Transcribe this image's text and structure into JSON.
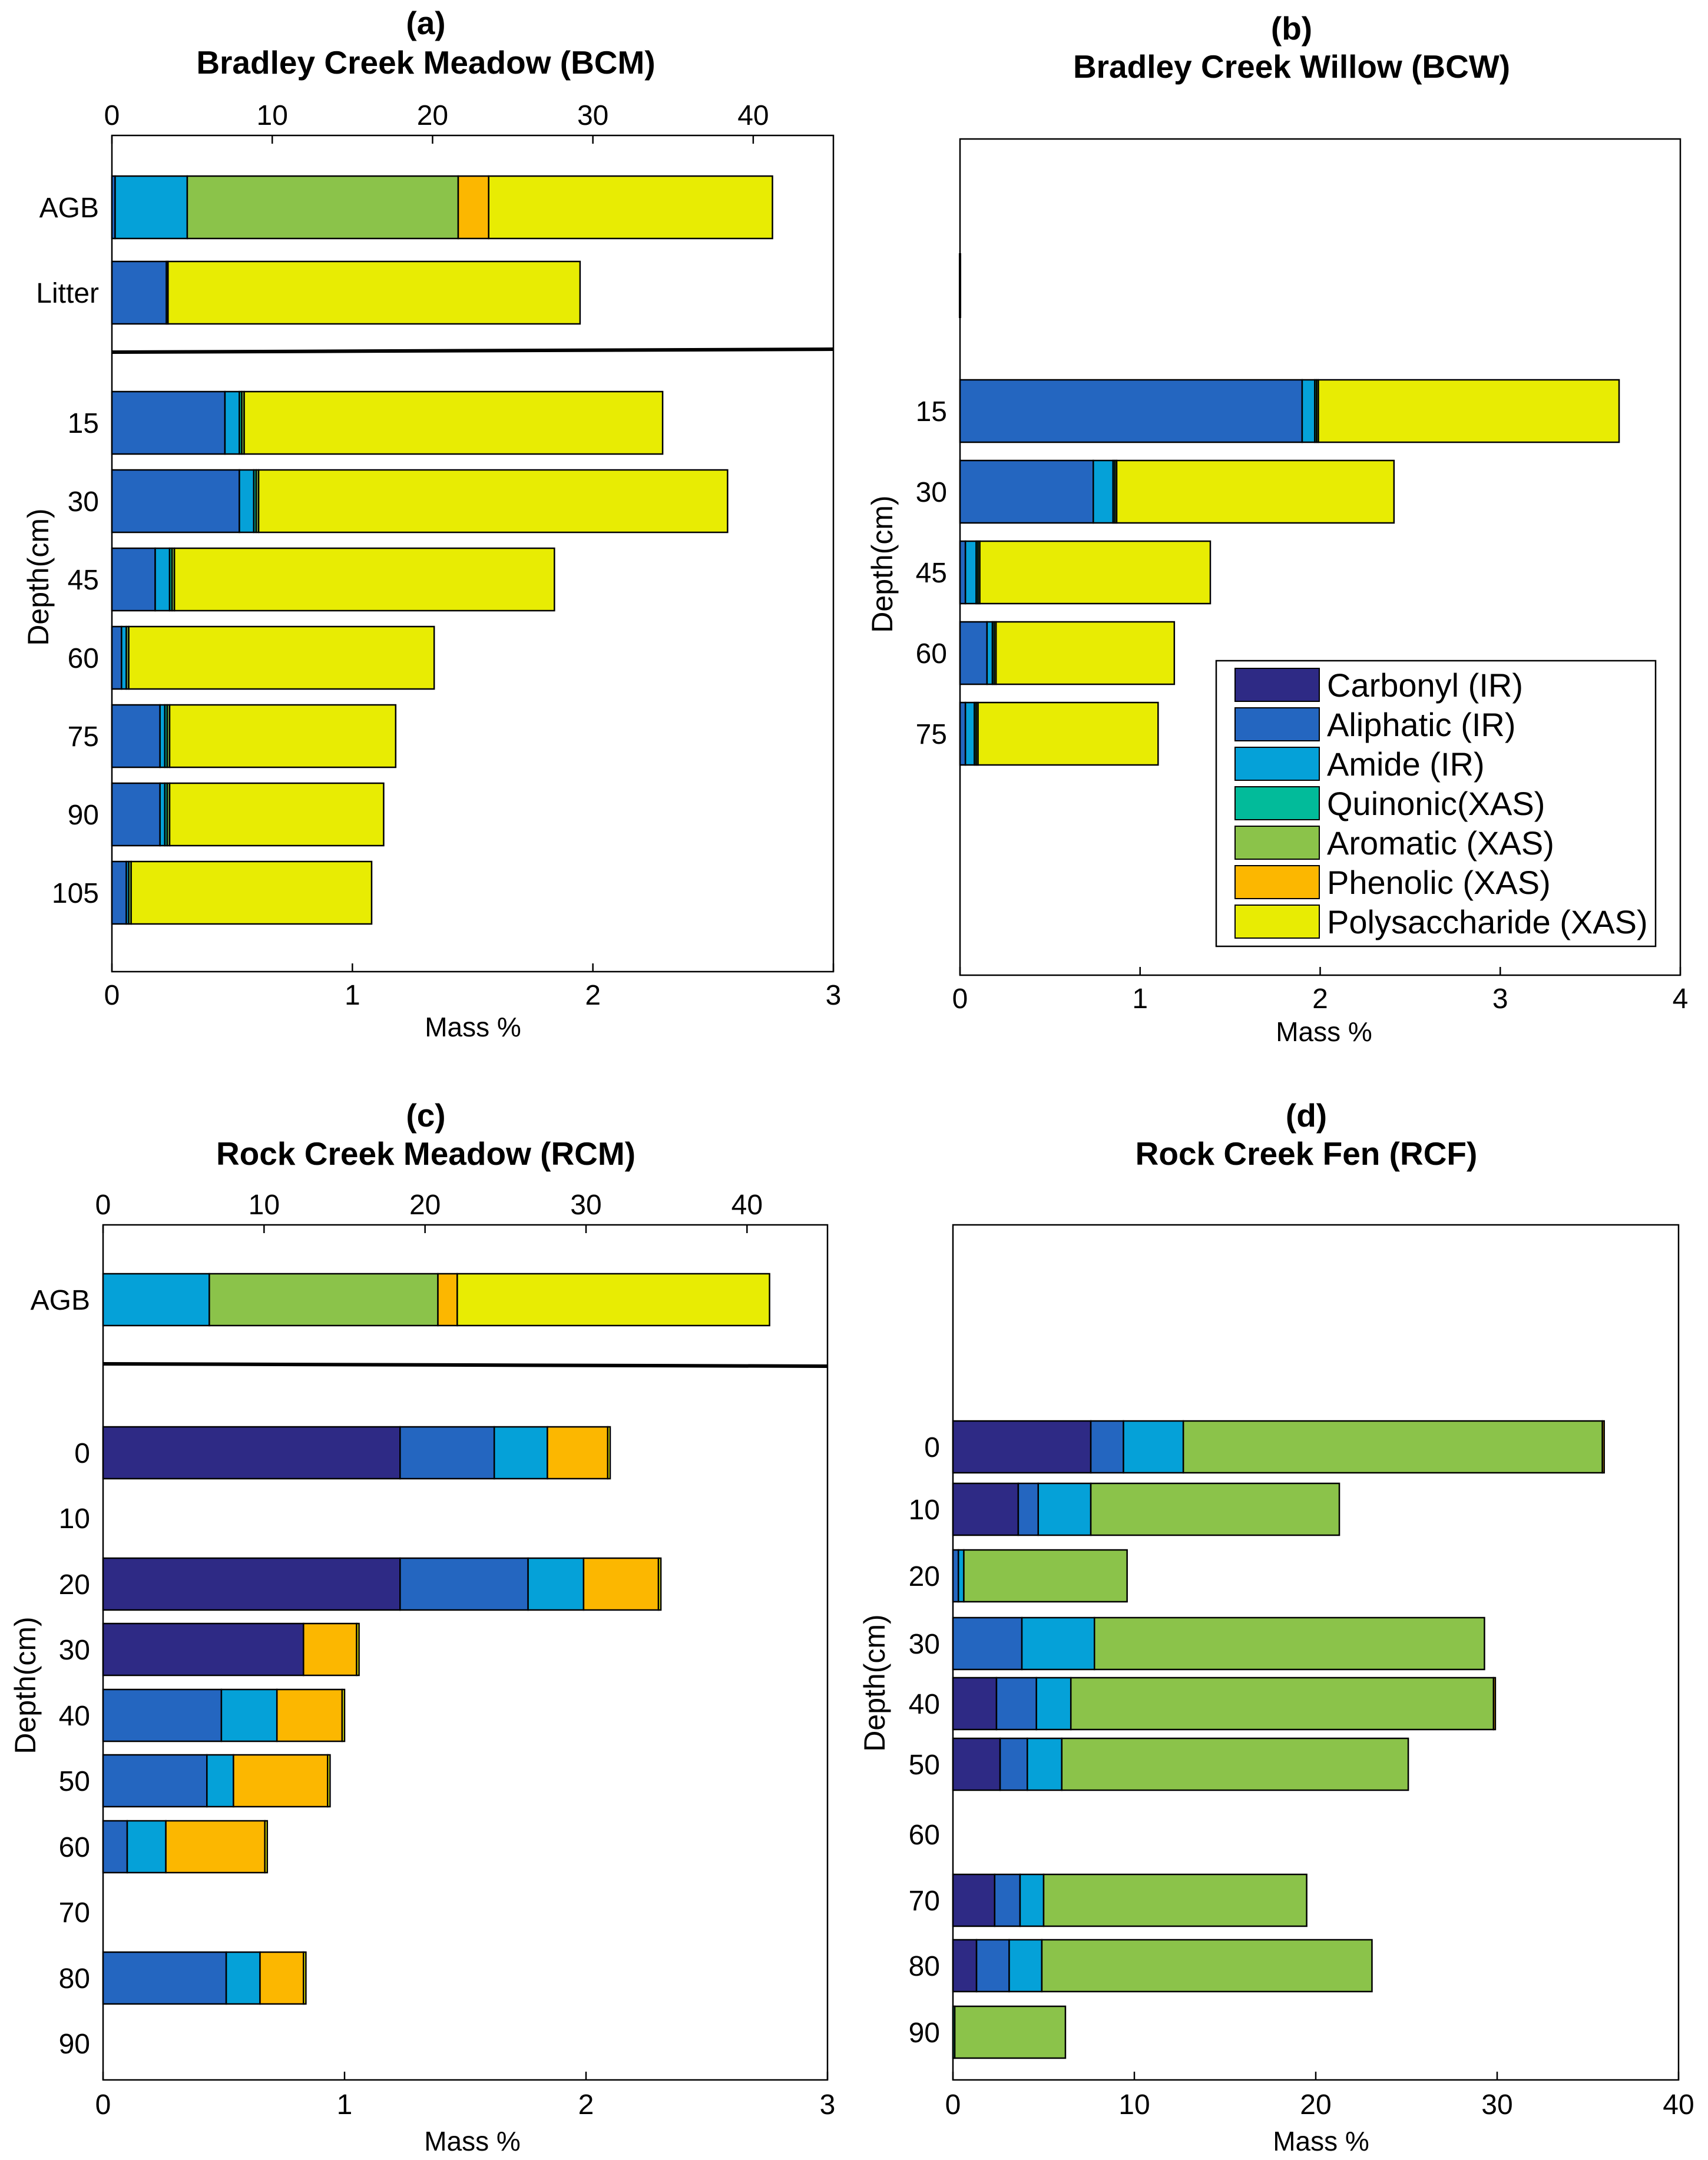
{
  "legend": [
    {
      "key": "carbonyl",
      "label": "Carbonyl (IR)",
      "color": "#2e2a85"
    },
    {
      "key": "aliphatic",
      "label": "Aliphatic (IR)",
      "color": "#2466c0"
    },
    {
      "key": "amide",
      "label": "Amide (IR)",
      "color": "#05a1d8"
    },
    {
      "key": "quinonic",
      "label": "Quinonic(XAS)",
      "color": "#02bb9a"
    },
    {
      "key": "aromatic",
      "label": "Aromatic (XAS)",
      "color": "#8bc34a"
    },
    {
      "key": "phenolic",
      "label": "Phenolic (XAS)",
      "color": "#fcb700"
    },
    {
      "key": "polysaccharide",
      "label": "Polysaccharide (XAS)",
      "color": "#e8ec03"
    }
  ],
  "chart_data": [
    {
      "type": "bar",
      "orientation": "horizontal",
      "stacked": true,
      "panel": "(a)",
      "title": "Bradley Creek Meadow (BCM)",
      "xlabel": "Mass %",
      "ylabel": "Depth(cm)",
      "xlim": [
        0,
        3
      ],
      "xticks": [
        0,
        1,
        2,
        3
      ],
      "top_axis": {
        "xlim": [
          0,
          45
        ],
        "xticks": [
          0,
          10,
          20,
          30,
          40
        ],
        "applies_to": [
          "AGB",
          "Litter"
        ]
      },
      "categories": [
        "AGB",
        "Litter",
        "15",
        "30",
        "45",
        "60",
        "75",
        "90",
        "105"
      ],
      "series": [
        {
          "name": "Carbonyl (IR)",
          "values": [
            0,
            0,
            0,
            0,
            0,
            0,
            0,
            0,
            0
          ]
        },
        {
          "name": "Aliphatic (IR)",
          "values": [
            0.2,
            3.4,
            0.47,
            0.53,
            0.18,
            0.04,
            0.2,
            0.2,
            0.06
          ]
        },
        {
          "name": "Amide (IR)",
          "values": [
            4.5,
            0.1,
            0.06,
            0.06,
            0.06,
            0.02,
            0.02,
            0.02,
            0.01
          ]
        },
        {
          "name": "Quinonic(XAS)",
          "values": [
            0,
            0,
            0.01,
            0.01,
            0.01,
            0,
            0.01,
            0.01,
            0
          ]
        },
        {
          "name": "Aromatic (XAS)",
          "values": [
            16.9,
            0,
            0.01,
            0.01,
            0.01,
            0.01,
            0.01,
            0.01,
            0.01
          ]
        },
        {
          "name": "Phenolic (XAS)",
          "values": [
            1.9,
            0,
            0,
            0,
            0,
            0,
            0,
            0,
            0
          ]
        },
        {
          "name": "Polysaccharide (XAS)",
          "values": [
            17.7,
            25.7,
            1.74,
            1.95,
            1.58,
            1.27,
            0.94,
            0.89,
            1.0
          ]
        }
      ]
    },
    {
      "type": "bar",
      "orientation": "horizontal",
      "stacked": true,
      "panel": "(b)",
      "title": "Bradley Creek Willow (BCW)",
      "xlabel": "Mass %",
      "ylabel": "Depth(cm)",
      "xlim": [
        0,
        4
      ],
      "xticks": [
        0,
        1,
        2,
        3,
        4
      ],
      "categories": [
        "15",
        "30",
        "45",
        "60",
        "75"
      ],
      "series": [
        {
          "name": "Carbonyl (IR)",
          "values": [
            0,
            0,
            0,
            0,
            0
          ]
        },
        {
          "name": "Aliphatic (IR)",
          "values": [
            1.9,
            0.74,
            0.03,
            0.15,
            0.03
          ]
        },
        {
          "name": "Amide (IR)",
          "values": [
            0.07,
            0.11,
            0.06,
            0.03,
            0.05
          ]
        },
        {
          "name": "Quinonic(XAS)",
          "values": [
            0.01,
            0.01,
            0.01,
            0.01,
            0.01
          ]
        },
        {
          "name": "Aromatic (XAS)",
          "values": [
            0.01,
            0.01,
            0.01,
            0.01,
            0.01
          ]
        },
        {
          "name": "Phenolic (XAS)",
          "values": [
            0,
            0,
            0,
            0,
            0
          ]
        },
        {
          "name": "Polysaccharide (XAS)",
          "values": [
            1.67,
            1.54,
            1.28,
            0.99,
            1.0
          ]
        }
      ]
    },
    {
      "type": "bar",
      "orientation": "horizontal",
      "stacked": true,
      "panel": "(c)",
      "title": "Rock Creek Meadow (RCM)",
      "xlabel": "Mass %",
      "ylabel": "Depth(cm)",
      "xlim": [
        0,
        3
      ],
      "xticks": [
        0,
        1,
        2,
        3
      ],
      "top_axis": {
        "xlim": [
          0,
          45
        ],
        "xticks": [
          0,
          10,
          20,
          30,
          40
        ],
        "applies_to": [
          "AGB"
        ]
      },
      "categories": [
        "AGB",
        "0",
        "10",
        "20",
        "30",
        "40",
        "50",
        "60",
        "70",
        "80",
        "90"
      ],
      "series": [
        {
          "name": "Carbonyl (IR)",
          "values": [
            0,
            1.23,
            0,
            1.23,
            0.83,
            0,
            0,
            0,
            0,
            0,
            0
          ]
        },
        {
          "name": "Aliphatic (IR)",
          "values": [
            0,
            0.39,
            0,
            0.53,
            0,
            0.49,
            0.43,
            0.1,
            0,
            0.51,
            0
          ]
        },
        {
          "name": "Amide (IR)",
          "values": [
            6.6,
            0.22,
            0,
            0.23,
            0,
            0.23,
            0.11,
            0.16,
            0,
            0.14,
            0
          ]
        },
        {
          "name": "Quinonic(XAS)",
          "values": [
            0,
            0,
            0,
            0,
            0,
            0,
            0,
            0,
            0,
            0,
            0
          ]
        },
        {
          "name": "Aromatic (XAS)",
          "values": [
            14.2,
            0,
            0,
            0,
            0,
            0,
            0,
            0,
            0,
            0,
            0
          ]
        },
        {
          "name": "Phenolic (XAS)",
          "values": [
            1.2,
            0.25,
            0,
            0.31,
            0.22,
            0.27,
            0.39,
            0.41,
            0,
            0.18,
            0
          ]
        },
        {
          "name": "Polysaccharide (XAS)",
          "values": [
            19.4,
            0.01,
            0,
            0.01,
            0.01,
            0.01,
            0.01,
            0.01,
            0,
            0.01,
            0
          ]
        }
      ]
    },
    {
      "type": "bar",
      "orientation": "horizontal",
      "stacked": true,
      "panel": "(d)",
      "title": "Rock Creek Fen (RCF)",
      "xlabel": "Mass %",
      "ylabel": "Depth(cm)",
      "xlim": [
        0,
        40
      ],
      "xticks": [
        0,
        10,
        20,
        30,
        40
      ],
      "categories": [
        "0",
        "10",
        "20",
        "30",
        "40",
        "50",
        "60",
        "70",
        "80",
        "90"
      ],
      "series": [
        {
          "name": "Carbonyl (IR)",
          "values": [
            7.6,
            3.6,
            0,
            0,
            2.4,
            2.6,
            0,
            2.3,
            1.3,
            0
          ]
        },
        {
          "name": "Aliphatic (IR)",
          "values": [
            1.8,
            1.1,
            0.3,
            3.8,
            2.2,
            1.5,
            0,
            1.4,
            1.8,
            0
          ]
        },
        {
          "name": "Amide (IR)",
          "values": [
            3.3,
            2.9,
            0.3,
            4.0,
            1.9,
            1.9,
            0,
            1.3,
            1.8,
            0
          ]
        },
        {
          "name": "Quinonic(XAS)",
          "values": [
            0,
            0,
            0,
            0,
            0,
            0,
            0,
            0,
            0,
            0.1
          ]
        },
        {
          "name": "Aromatic (XAS)",
          "values": [
            23.1,
            13.7,
            9.0,
            21.5,
            23.3,
            19.1,
            0,
            14.5,
            18.2,
            6.1
          ]
        },
        {
          "name": "Phenolic (XAS)",
          "values": [
            0.1,
            0,
            0,
            0,
            0.1,
            0,
            0,
            0,
            0,
            0
          ]
        },
        {
          "name": "Polysaccharide (XAS)",
          "values": [
            0,
            0,
            0,
            0,
            0,
            0,
            0,
            0,
            0,
            0
          ]
        }
      ]
    }
  ]
}
